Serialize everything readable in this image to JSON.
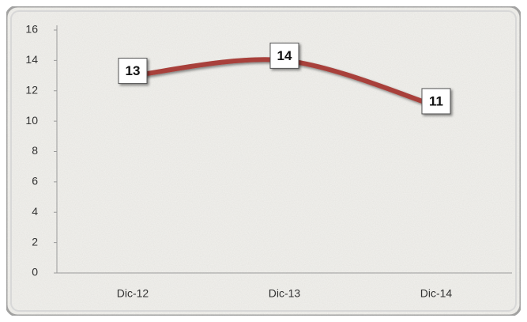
{
  "chart_data": {
    "type": "line",
    "categories": [
      "Dic-12",
      "Dic-13",
      "Dic-14"
    ],
    "values": [
      13,
      14,
      11
    ],
    "color": "#a8403a",
    "ylim": [
      0,
      16
    ],
    "yticks": [
      0,
      2,
      4,
      6,
      8,
      10,
      12,
      14,
      16
    ],
    "smooth": true,
    "grid": false
  }
}
